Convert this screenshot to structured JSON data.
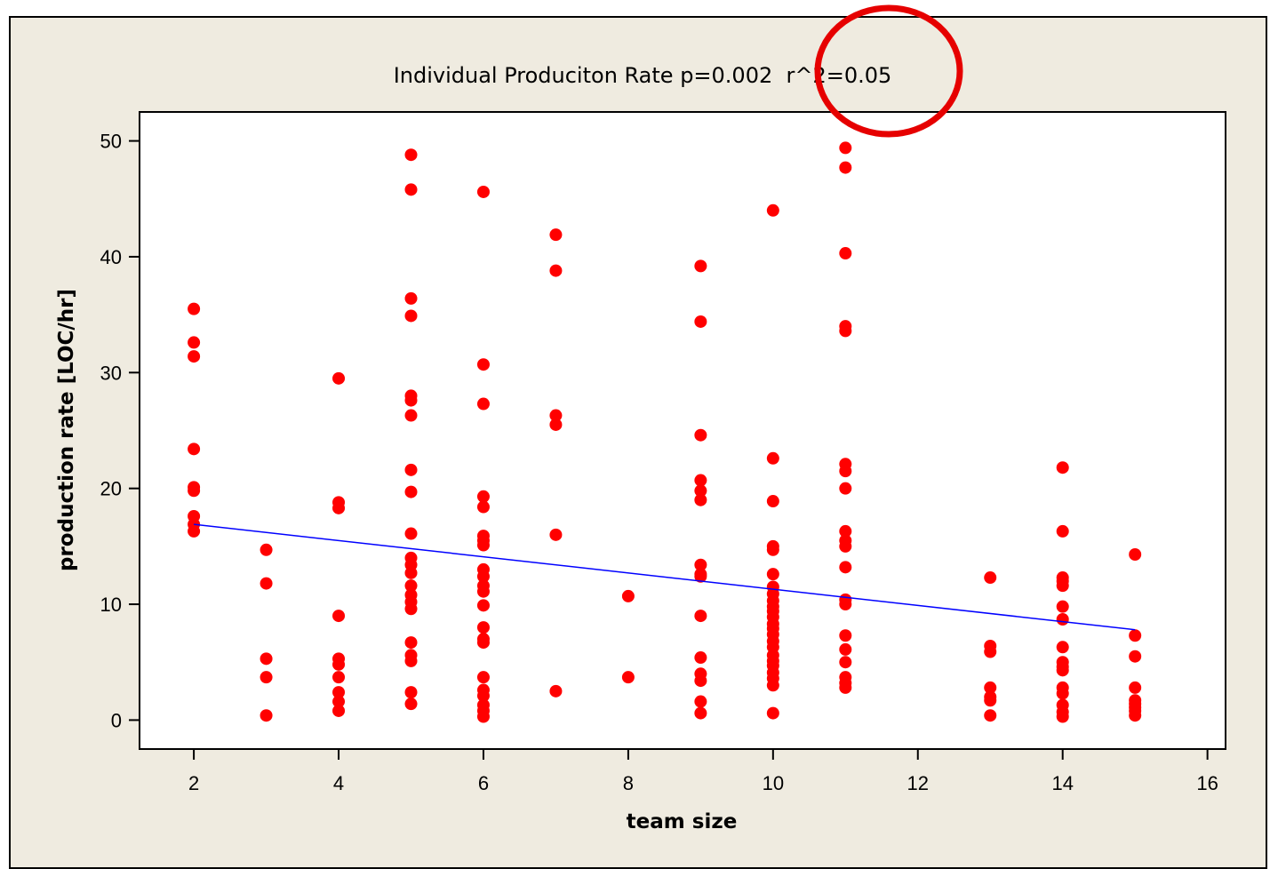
{
  "colors": {
    "background": "#efebe0",
    "plot_background": "#ffffff",
    "points": "#ff0000",
    "fit_line": "#0000ff",
    "highlight_circle": "#e60000"
  },
  "annotation": {
    "shape": "circle",
    "highlights": "r^2=0.05"
  },
  "chart_data": {
    "type": "scatter",
    "title": "Individual Produciton Rate p=0.002  r^2=0.05",
    "xlabel": "team size",
    "ylabel": "production rate [LOC/hr]",
    "xlim": [
      1.25,
      16.25
    ],
    "ylim": [
      -2.5,
      52.5
    ],
    "xticks": [
      2,
      4,
      6,
      8,
      10,
      12,
      14,
      16
    ],
    "yticks": [
      0,
      10,
      20,
      30,
      40,
      50
    ],
    "grid": false,
    "legend": "none",
    "fit_line": {
      "x": [
        2,
        15
      ],
      "y": [
        16.9,
        7.8
      ]
    },
    "points": [
      [
        2,
        35.5
      ],
      [
        2,
        32.6
      ],
      [
        2,
        31.4
      ],
      [
        2,
        23.4
      ],
      [
        2,
        20.1
      ],
      [
        2,
        19.8
      ],
      [
        2,
        17.6
      ],
      [
        2,
        16.9
      ],
      [
        2,
        16.3
      ],
      [
        3,
        14.7
      ],
      [
        3,
        11.8
      ],
      [
        3,
        5.3
      ],
      [
        3,
        3.7
      ],
      [
        3,
        0.4
      ],
      [
        4,
        29.5
      ],
      [
        4,
        18.8
      ],
      [
        4,
        18.3
      ],
      [
        4,
        9.0
      ],
      [
        4,
        5.3
      ],
      [
        4,
        4.8
      ],
      [
        4,
        3.7
      ],
      [
        4,
        2.4
      ],
      [
        4,
        1.6
      ],
      [
        4,
        0.8
      ],
      [
        5,
        48.8
      ],
      [
        5,
        45.8
      ],
      [
        5,
        36.4
      ],
      [
        5,
        34.9
      ],
      [
        5,
        28.0
      ],
      [
        5,
        27.6
      ],
      [
        5,
        26.3
      ],
      [
        5,
        21.6
      ],
      [
        5,
        19.7
      ],
      [
        5,
        16.1
      ],
      [
        5,
        14.0
      ],
      [
        5,
        13.4
      ],
      [
        5,
        12.7
      ],
      [
        5,
        11.6
      ],
      [
        5,
        10.8
      ],
      [
        5,
        10.2
      ],
      [
        5,
        9.6
      ],
      [
        5,
        6.7
      ],
      [
        5,
        5.6
      ],
      [
        5,
        5.1
      ],
      [
        5,
        2.4
      ],
      [
        5,
        1.4
      ],
      [
        6,
        45.6
      ],
      [
        6,
        30.7
      ],
      [
        6,
        27.3
      ],
      [
        6,
        19.3
      ],
      [
        6,
        18.4
      ],
      [
        6,
        15.9
      ],
      [
        6,
        15.5
      ],
      [
        6,
        15.1
      ],
      [
        6,
        13.0
      ],
      [
        6,
        12.4
      ],
      [
        6,
        11.6
      ],
      [
        6,
        11.1
      ],
      [
        6,
        9.9
      ],
      [
        6,
        8.0
      ],
      [
        6,
        7.0
      ],
      [
        6,
        6.7
      ],
      [
        6,
        3.7
      ],
      [
        6,
        2.6
      ],
      [
        6,
        2.1
      ],
      [
        6,
        1.3
      ],
      [
        6,
        0.8
      ],
      [
        6,
        0.3
      ],
      [
        7,
        41.9
      ],
      [
        7,
        38.8
      ],
      [
        7,
        26.3
      ],
      [
        7,
        25.5
      ],
      [
        7,
        16.0
      ],
      [
        7,
        2.5
      ],
      [
        8,
        10.7
      ],
      [
        8,
        3.7
      ],
      [
        9,
        39.2
      ],
      [
        9,
        34.4
      ],
      [
        9,
        24.6
      ],
      [
        9,
        20.7
      ],
      [
        9,
        19.8
      ],
      [
        9,
        19.0
      ],
      [
        9,
        13.4
      ],
      [
        9,
        12.6
      ],
      [
        9,
        12.4
      ],
      [
        9,
        9.0
      ],
      [
        9,
        5.4
      ],
      [
        9,
        4.0
      ],
      [
        9,
        3.4
      ],
      [
        9,
        1.6
      ],
      [
        9,
        0.6
      ],
      [
        10,
        44.0
      ],
      [
        10,
        22.6
      ],
      [
        10,
        18.9
      ],
      [
        10,
        15.0
      ],
      [
        10,
        14.7
      ],
      [
        10,
        12.6
      ],
      [
        10,
        11.5
      ],
      [
        10,
        10.9
      ],
      [
        10,
        10.3
      ],
      [
        10,
        9.8
      ],
      [
        10,
        9.4
      ],
      [
        10,
        8.9
      ],
      [
        10,
        8.3
      ],
      [
        10,
        7.9
      ],
      [
        10,
        7.4
      ],
      [
        10,
        6.8
      ],
      [
        10,
        6.3
      ],
      [
        10,
        5.6
      ],
      [
        10,
        5.1
      ],
      [
        10,
        4.7
      ],
      [
        10,
        4.1
      ],
      [
        10,
        3.6
      ],
      [
        10,
        3.0
      ],
      [
        10,
        0.6
      ],
      [
        11,
        49.4
      ],
      [
        11,
        47.7
      ],
      [
        11,
        40.3
      ],
      [
        11,
        34.0
      ],
      [
        11,
        33.6
      ],
      [
        11,
        22.1
      ],
      [
        11,
        21.5
      ],
      [
        11,
        20.0
      ],
      [
        11,
        16.3
      ],
      [
        11,
        15.5
      ],
      [
        11,
        15.0
      ],
      [
        11,
        13.2
      ],
      [
        11,
        10.4
      ],
      [
        11,
        10.0
      ],
      [
        11,
        7.3
      ],
      [
        11,
        6.1
      ],
      [
        11,
        5.0
      ],
      [
        11,
        3.7
      ],
      [
        11,
        3.2
      ],
      [
        11,
        2.8
      ],
      [
        13,
        12.3
      ],
      [
        13,
        6.4
      ],
      [
        13,
        5.9
      ],
      [
        13,
        2.8
      ],
      [
        13,
        2.0
      ],
      [
        13,
        1.7
      ],
      [
        13,
        0.4
      ],
      [
        14,
        21.8
      ],
      [
        14,
        16.3
      ],
      [
        14,
        12.3
      ],
      [
        14,
        12.0
      ],
      [
        14,
        11.6
      ],
      [
        14,
        9.8
      ],
      [
        14,
        8.7
      ],
      [
        14,
        6.3
      ],
      [
        14,
        5.0
      ],
      [
        14,
        4.6
      ],
      [
        14,
        4.3
      ],
      [
        14,
        2.8
      ],
      [
        14,
        2.3
      ],
      [
        14,
        1.3
      ],
      [
        14,
        0.7
      ],
      [
        14,
        0.3
      ],
      [
        15,
        14.3
      ],
      [
        15,
        7.3
      ],
      [
        15,
        5.5
      ],
      [
        15,
        2.8
      ],
      [
        15,
        1.7
      ],
      [
        15,
        1.4
      ],
      [
        15,
        1.1
      ],
      [
        15,
        0.8
      ],
      [
        15,
        0.4
      ]
    ]
  }
}
